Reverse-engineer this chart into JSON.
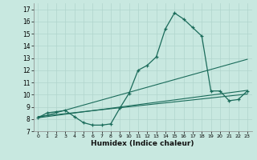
{
  "xlabel": "Humidex (Indice chaleur)",
  "bg_color": "#c8e8e0",
  "grid_color": "#b0d4cc",
  "line_color": "#1a6b5a",
  "xlim": [
    -0.5,
    23.5
  ],
  "ylim": [
    7,
    17.5
  ],
  "yticks": [
    7,
    8,
    9,
    10,
    11,
    12,
    13,
    14,
    15,
    16,
    17
  ],
  "xticks": [
    0,
    1,
    2,
    3,
    4,
    5,
    6,
    7,
    8,
    9,
    10,
    11,
    12,
    13,
    14,
    15,
    16,
    17,
    18,
    19,
    20,
    21,
    22,
    23
  ],
  "line1_x": [
    0,
    1,
    2,
    3,
    4,
    5,
    6,
    7,
    8,
    9,
    10,
    11,
    12,
    13,
    14,
    15,
    16,
    17,
    18,
    19,
    20,
    21,
    22,
    23
  ],
  "line1_y": [
    8.1,
    8.5,
    8.6,
    8.7,
    8.2,
    7.7,
    7.5,
    7.5,
    7.6,
    8.9,
    10.1,
    12.0,
    12.4,
    13.1,
    15.4,
    16.7,
    16.2,
    15.5,
    14.8,
    10.3,
    10.3,
    9.5,
    9.6,
    10.3
  ],
  "line2_x": [
    0,
    23
  ],
  "line2_y": [
    8.1,
    12.9
  ],
  "line3_x": [
    0,
    23
  ],
  "line3_y": [
    8.1,
    10.35
  ],
  "line4_x": [
    0,
    23
  ],
  "line4_y": [
    8.2,
    10.05
  ]
}
